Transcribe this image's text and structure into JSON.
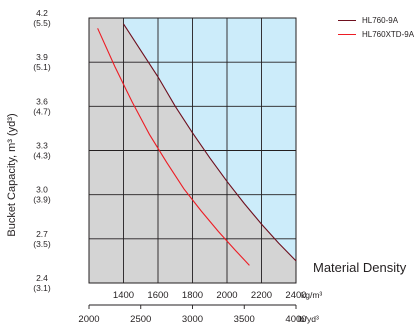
{
  "chart_data": {
    "type": "line",
    "title": "",
    "ylabel": "Bucket Capacity, m³ (yd³)",
    "xlabel": "Material Density",
    "ylim": [
      2.4,
      4.2
    ],
    "xlim": [
      1200,
      2400
    ],
    "x_ticks_primary": [
      {
        "value": 1400,
        "label": "1400"
      },
      {
        "value": 1600,
        "label": "1600"
      },
      {
        "value": 1800,
        "label": "1800"
      },
      {
        "value": 2000,
        "label": "2000"
      },
      {
        "value": 2200,
        "label": "2200"
      },
      {
        "value": 2400,
        "label": "2400"
      }
    ],
    "x_unit_primary": "kg/m³",
    "x_ticks_secondary": [
      {
        "value": 2000,
        "label": "2000"
      },
      {
        "value": 2500,
        "label": "2500"
      },
      {
        "value": 3000,
        "label": "3000"
      },
      {
        "value": 3500,
        "label": "3500"
      },
      {
        "value": 4000,
        "label": "4000"
      }
    ],
    "x_unit_secondary": "lb/yd³",
    "y_ticks": [
      {
        "value": 4.2,
        "label": "4.2",
        "sub": "(5.5)"
      },
      {
        "value": 3.9,
        "label": "3.9",
        "sub": "(5.1)"
      },
      {
        "value": 3.6,
        "label": "3.6",
        "sub": "(4.7)"
      },
      {
        "value": 3.3,
        "label": "3.3",
        "sub": "(4.3)"
      },
      {
        "value": 3.0,
        "label": "3.0",
        "sub": "(3.9)"
      },
      {
        "value": 2.7,
        "label": "2.7",
        "sub": "(3.5)"
      },
      {
        "value": 2.4,
        "label": "2.4",
        "sub": "(3.1)"
      }
    ],
    "grid": true,
    "legend_position": "top-right",
    "background_regions": [
      {
        "from": 1200,
        "to": 1400,
        "color": "#d4d4d4"
      },
      {
        "from": 1400,
        "to": 2400,
        "color": "#ccecfa"
      }
    ],
    "shaded_area": {
      "color": "#d4d4d4",
      "bounded_by": "HL760-9A"
    },
    "series": [
      {
        "name": "HL760-9A",
        "color": "#6e0f1e",
        "x": [
          1400,
          1500,
          1600,
          1700,
          1800,
          1900,
          2000,
          2100,
          2200,
          2300,
          2400
        ],
        "y": [
          4.16,
          3.98,
          3.8,
          3.6,
          3.42,
          3.25,
          3.09,
          2.94,
          2.8,
          2.67,
          2.55
        ]
      },
      {
        "name": "HL760XTD-9A",
        "color": "#ed1c24",
        "x": [
          1250,
          1350,
          1450,
          1550,
          1650,
          1750,
          1850,
          1950,
          2050,
          2130
        ],
        "y": [
          4.13,
          3.87,
          3.63,
          3.41,
          3.22,
          3.04,
          2.89,
          2.75,
          2.62,
          2.52
        ]
      }
    ]
  }
}
